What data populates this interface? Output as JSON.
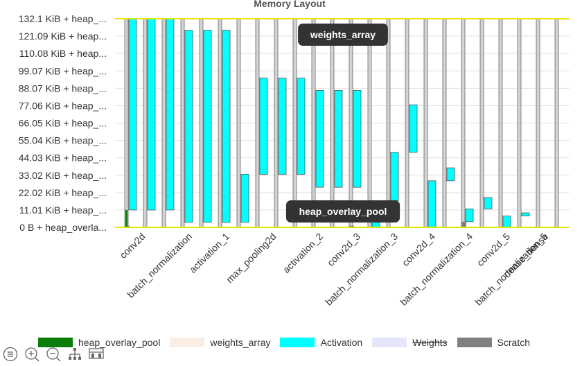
{
  "chart_data": {
    "type": "bar",
    "title": "Memory Layout",
    "y_tick_labels": [
      "0 B + heap_overla...",
      "11.01 KiB + heap_...",
      "22.02 KiB + heap_...",
      "33.02 KiB + heap_...",
      "44.03 KiB + heap_...",
      "55.04 KiB + heap_...",
      "66.05 KiB + heap_...",
      "77.06 KiB + heap_...",
      "88.07 KiB + heap_...",
      "99.07 KiB + heap_...",
      "110.08 KiB + heap...",
      "121.09 KiB + heap...",
      "132.1 KiB + heap_..."
    ],
    "y_tick_values_kib": [
      0,
      11.01,
      22.02,
      33.02,
      44.03,
      55.04,
      66.05,
      77.06,
      88.07,
      99.07,
      110.08,
      121.09,
      132.1
    ],
    "ylim_kib": [
      0,
      132.1
    ],
    "x_categories": [
      "conv2d",
      "batch_normalization",
      "activation_1",
      "max_pooling2d",
      "activation_2",
      "conv2d_3",
      "batch_normalization_3",
      "conv2d_4",
      "batch_normalization_4",
      "conv2d_5",
      "batch_normalization_5",
      "dense_dense"
    ],
    "step_count": 24,
    "step_category_index": [
      0,
      0,
      0,
      1,
      1,
      2,
      2,
      3,
      3,
      3,
      4,
      4,
      5,
      5,
      6,
      6,
      7,
      7,
      8,
      8,
      9,
      9,
      10,
      10
    ],
    "weights_array_bars": [
      [
        0,
        132.1
      ],
      [
        0,
        132.1
      ],
      [
        0,
        132.1
      ],
      [
        0,
        132.1
      ],
      [
        0,
        132.1
      ],
      [
        0,
        132.1
      ],
      [
        0,
        132.1
      ],
      [
        0,
        132.1
      ],
      [
        0,
        132.1
      ],
      [
        0,
        132.1
      ],
      [
        0,
        132.1
      ],
      [
        0,
        132.1
      ],
      [
        0,
        132.1
      ],
      [
        0,
        132.1
      ],
      [
        0,
        132.1
      ],
      [
        0,
        132.1
      ],
      [
        0,
        132.1
      ],
      [
        0,
        132.1
      ],
      [
        0,
        132.1
      ],
      [
        0,
        132.1
      ],
      [
        0,
        132.1
      ],
      [
        0,
        132.1
      ],
      [
        0,
        132.1
      ],
      [
        0,
        132.1
      ]
    ],
    "activation_bars": [
      {
        "slot": 0,
        "span": 1,
        "from": 11.0,
        "to": 132.1
      },
      {
        "slot": 1,
        "span": 1,
        "from": 11.0,
        "to": 132.1
      },
      {
        "slot": 2,
        "span": 1,
        "from": 11.0,
        "to": 132.1
      },
      {
        "slot": 3,
        "span": 1,
        "from": 3.2,
        "to": 124.8
      },
      {
        "slot": 4,
        "span": 1,
        "from": 3.2,
        "to": 124.8
      },
      {
        "slot": 5,
        "span": 1,
        "from": 3.2,
        "to": 124.8
      },
      {
        "slot": 6,
        "span": 1,
        "from": 3.2,
        "to": 33.6
      },
      {
        "slot": 7,
        "span": 1,
        "from": 33.6,
        "to": 94.5
      },
      {
        "slot": 8,
        "span": 1,
        "from": 33.6,
        "to": 94.5
      },
      {
        "slot": 9,
        "span": 1,
        "from": 33.6,
        "to": 94.5
      },
      {
        "slot": 10,
        "span": 1,
        "from": 25.4,
        "to": 86.7
      },
      {
        "slot": 11,
        "span": 1,
        "from": 25.4,
        "to": 86.7
      },
      {
        "slot": 12,
        "span": 1,
        "from": 25.4,
        "to": 86.7
      },
      {
        "slot": 13,
        "span": 1,
        "from": 0,
        "to": 8.4
      },
      {
        "slot": 14,
        "span": 1,
        "from": 16.9,
        "to": 47.5
      },
      {
        "slot": 15,
        "span": 1,
        "from": 47.5,
        "to": 77.6
      },
      {
        "slot": 16,
        "span": 1,
        "from": 0,
        "to": 29.5
      },
      {
        "slot": 17,
        "span": 1,
        "from": 29.5,
        "to": 37.7
      },
      {
        "slot": 18,
        "span": 1,
        "from": 3.6,
        "to": 11.7
      },
      {
        "slot": 19,
        "span": 1,
        "from": 11.7,
        "to": 18.9
      },
      {
        "slot": 20,
        "span": 1,
        "from": 0,
        "to": 7.2
      },
      {
        "slot": 21,
        "span": 1,
        "from": 7.2,
        "to": 9.2
      }
    ],
    "scratch_bars": [
      {
        "slot": 0,
        "from": 0,
        "to": 1.0
      },
      {
        "slot": 12,
        "from": 0,
        "to": 1.0
      },
      {
        "slot": 18,
        "from": 0,
        "to": 3.6
      }
    ],
    "heap_overlay_pool_bars": [
      {
        "slot": 0,
        "from": 0,
        "to": 11.0
      }
    ],
    "reference_lines_kib": [
      0,
      132.1
    ],
    "tooltips": [
      "weights_array",
      "heap_overlay_pool"
    ],
    "legend": [
      {
        "label": "heap_overlay_pool",
        "color": "#0a7d0a",
        "hidden": false
      },
      {
        "label": "weights_array",
        "color": "#f9ede4",
        "hidden": false
      },
      {
        "label": "Activation",
        "color": "#00ffff",
        "hidden": false
      },
      {
        "label": "Weights",
        "color": "#e6e6fa",
        "hidden": true
      },
      {
        "label": "Scratch",
        "color": "#808080",
        "hidden": false
      }
    ],
    "colors": {
      "weights_array_bar_fill": "#d3d3d3",
      "weights_array_bar_stroke": "#666666",
      "activation_fill": "#00ffff",
      "activation_stroke": "#555555",
      "scratch_fill": "#808080",
      "heap_overlay_pool_fill": "#0a7d0a",
      "reference_line": "#e6e600",
      "tooltip_bg": "#333333",
      "tooltip_text": "#ffffff"
    }
  },
  "toolbar": {
    "icons": [
      "list-icon",
      "zoom-in-icon",
      "zoom-out-icon",
      "hierarchy-icon",
      "layout-icon"
    ]
  }
}
